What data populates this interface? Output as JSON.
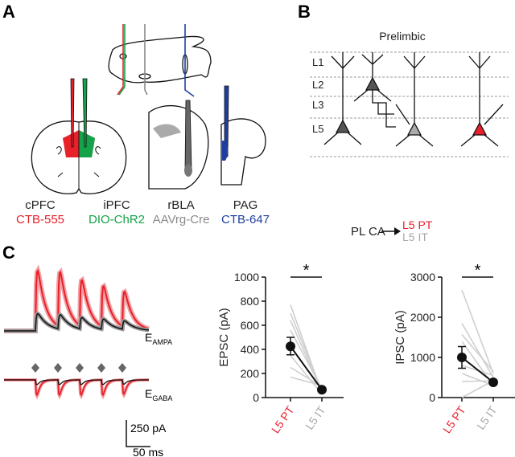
{
  "panels": {
    "a": "A",
    "b": "B",
    "c": "C"
  },
  "panel_a": {
    "regions": [
      {
        "name": "cPFC",
        "tracer": "CTB-555",
        "color": "#e8202a"
      },
      {
        "name": "iPFC",
        "tracer": "DIO-ChR2",
        "color": "#14a34a"
      },
      {
        "name": "rBLA",
        "tracer": "AAVrg-Cre",
        "color": "#8a8a8a"
      },
      {
        "name": "PAG",
        "tracer": "CTB-647",
        "color": "#1f3fa0"
      }
    ]
  },
  "panel_b": {
    "title": "Prelimbic",
    "layers": [
      "L1",
      "L2",
      "L3",
      "L5"
    ],
    "source": "PL CA",
    "targets": [
      {
        "label": "L5 PT",
        "color": "#e8202a"
      },
      {
        "label": "L5 IT",
        "color": "#a8a8a8"
      }
    ]
  },
  "panel_c": {
    "trace_labels": {
      "ampa": "E",
      "ampa_sub": "AMPA",
      "gaba": "E",
      "gaba_sub": "GABA"
    },
    "scale": {
      "amplitude": "250 pA",
      "time": "50 ms"
    }
  },
  "chart_data": [
    {
      "type": "line",
      "ylabel": "EPSC (pA)",
      "categories": [
        "L5 PT",
        "L5 IT"
      ],
      "category_colors": [
        "#e8202a",
        "#a8a8a8"
      ],
      "yticks": [
        0,
        200,
        400,
        600,
        800,
        1000
      ],
      "ylim": [
        0,
        1000
      ],
      "significance": "*",
      "mean": [
        425,
        65
      ],
      "error": [
        [
          355,
          500
        ],
        [
          50,
          80
        ]
      ],
      "pairs": [
        [
          770,
          40
        ],
        [
          700,
          60
        ],
        [
          640,
          50
        ],
        [
          560,
          70
        ],
        [
          350,
          30
        ],
        [
          250,
          90
        ],
        [
          170,
          100
        ]
      ]
    },
    {
      "type": "line",
      "ylabel": "IPSC (pA)",
      "categories": [
        "L5 PT",
        "L5 IT"
      ],
      "category_colors": [
        "#e8202a",
        "#a8a8a8"
      ],
      "yticks": [
        0,
        1000,
        2000,
        3000
      ],
      "ylim": [
        0,
        3000
      ],
      "significance": "*",
      "mean": [
        1000,
        380
      ],
      "error": [
        [
          730,
          1270
        ],
        [
          330,
          430
        ]
      ],
      "pairs": [
        [
          2680,
          600
        ],
        [
          1850,
          500
        ],
        [
          1570,
          650
        ],
        [
          1400,
          300
        ],
        [
          800,
          550
        ],
        [
          600,
          300
        ],
        [
          400,
          420
        ],
        [
          0,
          420
        ]
      ]
    }
  ]
}
